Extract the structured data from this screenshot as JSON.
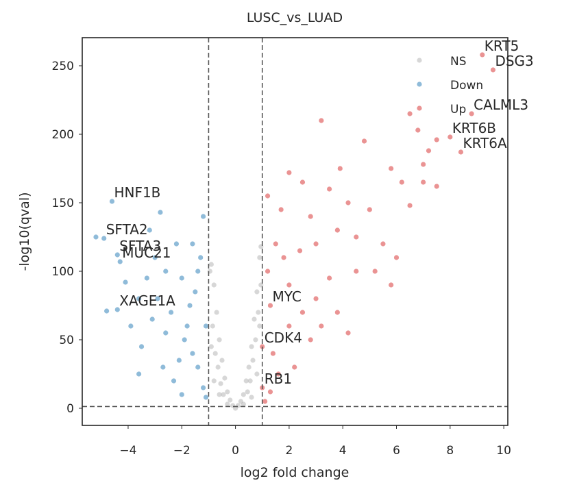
{
  "chart_data": {
    "type": "scatter",
    "title": "LUSC_vs_LUAD",
    "x_label": "log2 fold change",
    "y_label": "-log10(qval)",
    "xlim": [
      -5.71,
      10.15
    ],
    "ylim": [
      -12.5,
      270.5
    ],
    "xticks": [
      {
        "value": -4,
        "label": "−4"
      },
      {
        "value": -2,
        "label": "−2"
      },
      0,
      2,
      4,
      6,
      8,
      10
    ],
    "yticks": [
      0,
      50,
      100,
      150,
      200,
      250
    ],
    "vlines": [
      -1,
      1
    ],
    "hlines": [
      1.3
    ],
    "legend": "upper right",
    "series": [
      {
        "name": "NS",
        "color": "#b0b0b0",
        "x": [
          -0.9,
          -0.8,
          -0.7,
          -0.6,
          -0.5,
          -0.4,
          -0.3,
          -0.2,
          -0.1,
          0,
          0.1,
          0.2,
          0.3,
          0.4,
          0.5,
          0.6,
          0.7,
          0.8,
          0.9,
          0.95,
          -0.95,
          -0.85,
          -0.75,
          -0.65,
          -0.55,
          -0.45,
          0.45,
          0.55,
          0.65,
          0.75,
          0.85,
          0.9,
          -0.9,
          -0.8,
          0.8,
          -0.3,
          0.3,
          0.6,
          -0.6,
          0.95
        ],
        "values": [
          105,
          90,
          70,
          50,
          35,
          22,
          12,
          6,
          2,
          0,
          2,
          5,
          10,
          20,
          30,
          45,
          65,
          85,
          110,
          118,
          100,
          60,
          40,
          30,
          18,
          10,
          12,
          20,
          35,
          50,
          70,
          60,
          45,
          20,
          25,
          3,
          3,
          8,
          10,
          90
        ]
      },
      {
        "name": "Down",
        "color": "#1f77b4",
        "x": [
          -4.6,
          -4.9,
          -4.4,
          -4.3,
          -4.4,
          -5.2,
          -4.8,
          -4.1,
          -3.6,
          -3.9,
          -3.5,
          -3.6,
          -3.2,
          -2.8,
          -2.6,
          -2.4,
          -2.2,
          -2.0,
          -1.8,
          -1.6,
          -1.4,
          -1.2,
          -1.1,
          -1.3,
          -1.5,
          -1.7,
          -1.9,
          -2.1,
          -2.3,
          -2.6,
          -2.9,
          -3.1,
          -3.3,
          -1.2,
          -1.4,
          -1.1,
          -1.6,
          -2.7,
          -3.0,
          -2.0
        ],
        "values": [
          151,
          124,
          112,
          107,
          72,
          125,
          71,
          92,
          80,
          60,
          45,
          25,
          130,
          143,
          100,
          70,
          120,
          95,
          60,
          40,
          30,
          15,
          8,
          110,
          85,
          75,
          50,
          35,
          20,
          55,
          80,
          65,
          95,
          140,
          100,
          60,
          120,
          30,
          110,
          10
        ]
      },
      {
        "name": "Up",
        "color": "#d62728",
        "x": [
          9.2,
          9.6,
          8.8,
          8.0,
          8.4,
          1.3,
          1.0,
          1.0,
          3.2,
          6.5,
          6.8,
          7.5,
          7.2,
          7.0,
          4.8,
          3.9,
          5.8,
          6.2,
          7.0,
          7.5,
          2.0,
          2.5,
          3.5,
          4.2,
          5.0,
          6.5,
          2.8,
          3.8,
          4.5,
          5.5,
          6.0,
          5.2,
          5.8,
          4.5,
          3.5,
          3.0,
          2.5,
          2.0,
          1.8,
          1.5,
          1.2,
          1.4,
          1.6,
          2.2,
          2.8,
          3.2,
          3.8,
          4.2,
          1.1,
          1.3,
          2.0,
          2.4,
          1.7,
          1.2,
          3.0
        ],
        "values": [
          258,
          247,
          215,
          198,
          187,
          75,
          45,
          15,
          210,
          215,
          203,
          196,
          188,
          178,
          195,
          175,
          175,
          165,
          165,
          162,
          172,
          165,
          160,
          150,
          145,
          148,
          140,
          130,
          125,
          120,
          110,
          100,
          90,
          100,
          95,
          80,
          70,
          60,
          110,
          120,
          100,
          40,
          25,
          30,
          50,
          60,
          70,
          55,
          5,
          12,
          90,
          115,
          145,
          155,
          120
        ]
      }
    ],
    "annotations": [
      {
        "text": "KRT5",
        "x": 9.2,
        "y": 258
      },
      {
        "text": "DSG3",
        "x": 9.6,
        "y": 247
      },
      {
        "text": "CALML3",
        "x": 8.8,
        "y": 215
      },
      {
        "text": "KRT6B",
        "x": 8.0,
        "y": 198
      },
      {
        "text": "KRT6A",
        "x": 8.4,
        "y": 187
      },
      {
        "text": "HNF1B",
        "x": -4.6,
        "y": 151
      },
      {
        "text": "SFTA2",
        "x": -4.9,
        "y": 124
      },
      {
        "text": "SFTA3",
        "x": -4.4,
        "y": 112
      },
      {
        "text": "MUC21",
        "x": -4.3,
        "y": 107
      },
      {
        "text": "XAGE1A",
        "x": -4.4,
        "y": 72
      },
      {
        "text": "MYC",
        "x": 1.3,
        "y": 75
      },
      {
        "text": "CDK4",
        "x": 1.0,
        "y": 45
      },
      {
        "text": "RB1",
        "x": 1.0,
        "y": 15
      }
    ]
  }
}
